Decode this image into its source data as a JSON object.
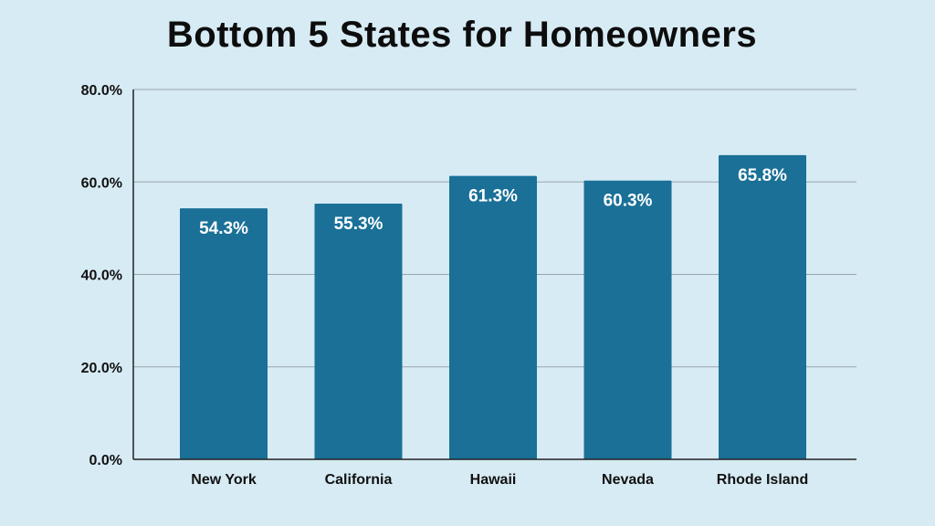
{
  "chart_data": {
    "type": "bar",
    "title": "Bottom 5 States for Homeowners",
    "categories": [
      "New York",
      "California",
      "Hawaii",
      "Nevada",
      "Rhode Island"
    ],
    "values": [
      54.3,
      55.3,
      61.3,
      60.3,
      65.8
    ],
    "data_labels": [
      "54.3%",
      "55.3%",
      "61.3%",
      "60.3%",
      "65.8%"
    ],
    "yticks": [
      0,
      20,
      40,
      60,
      80
    ],
    "ytick_labels": [
      "0.0%",
      "20.0%",
      "40.0%",
      "60.0%",
      "80.0%"
    ],
    "xlabel": "",
    "ylabel": "",
    "ylim": [
      0,
      80
    ],
    "grid": true,
    "legend": "none"
  },
  "colors": {
    "background": "#d7ebf4",
    "bar": "#1a7097",
    "gridline": "#9aa6ad",
    "axis": "#222222",
    "title": "#0d0d0d",
    "data_label": "#ffffff"
  }
}
